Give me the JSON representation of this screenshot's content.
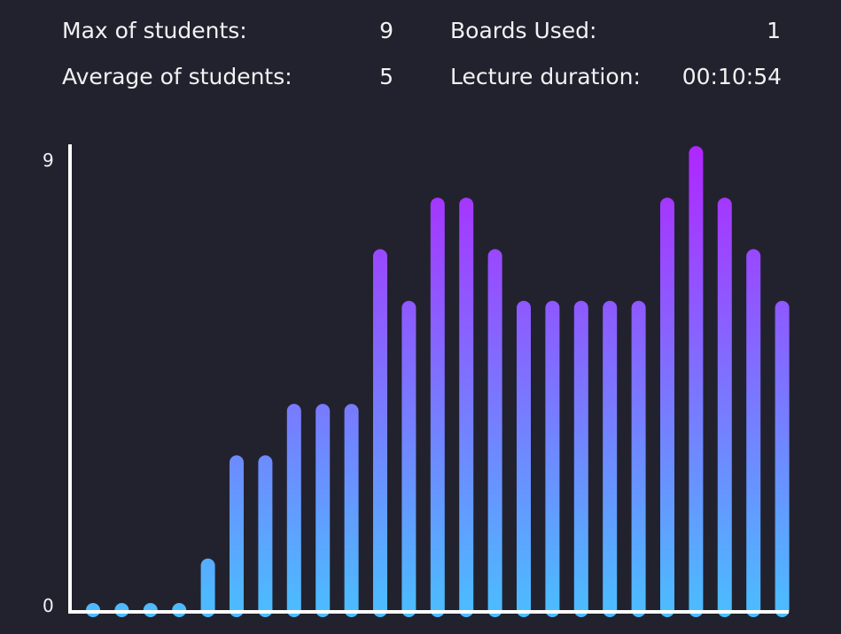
{
  "stats": {
    "max_label": "Max of students:",
    "max_value": "9",
    "avg_label": "Average of students:",
    "avg_value": "5",
    "boards_label": "Boards Used:",
    "boards_value": "1",
    "duration_label": "Lecture duration:",
    "duration_value": "00:10:54"
  },
  "chart_data": {
    "type": "bar",
    "values": [
      0,
      0,
      0,
      0,
      1,
      3,
      3,
      4,
      4,
      4,
      7,
      6,
      8,
      8,
      7,
      6,
      6,
      6,
      6,
      6,
      8,
      9,
      8,
      7,
      6
    ],
    "ylim": [
      0,
      9
    ],
    "yticks": [
      "0",
      "9"
    ],
    "colors": {
      "bar_top": "#b026ff",
      "bar_bottom": "#4cbcff",
      "axis": "#ffffff"
    }
  }
}
